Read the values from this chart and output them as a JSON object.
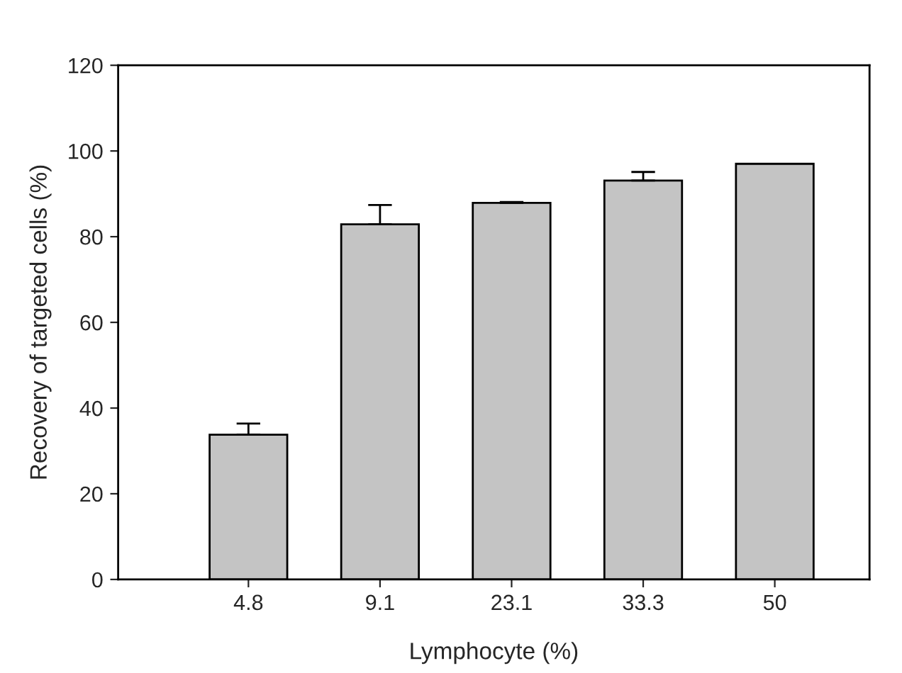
{
  "chart_data": {
    "type": "bar",
    "xlabel": "Lymphocyte (%)",
    "ylabel": "Recovery of targeted cells (%)",
    "categories": [
      "4.8",
      "9.1",
      "23.1",
      "33.3",
      "50"
    ],
    "values": [
      33.8,
      82.9,
      87.9,
      93.1,
      97.0
    ],
    "errors": [
      [
        33.8,
        36.4
      ],
      [
        82.9,
        87.4
      ],
      [
        87.9,
        88.1
      ],
      [
        93.1,
        95.1
      ],
      null
    ],
    "color": "#c4c4c4",
    "ylim": [
      0,
      120
    ],
    "yticks": [
      0,
      20,
      40,
      60,
      80,
      100,
      120
    ],
    "grid": false,
    "legend": false
  }
}
